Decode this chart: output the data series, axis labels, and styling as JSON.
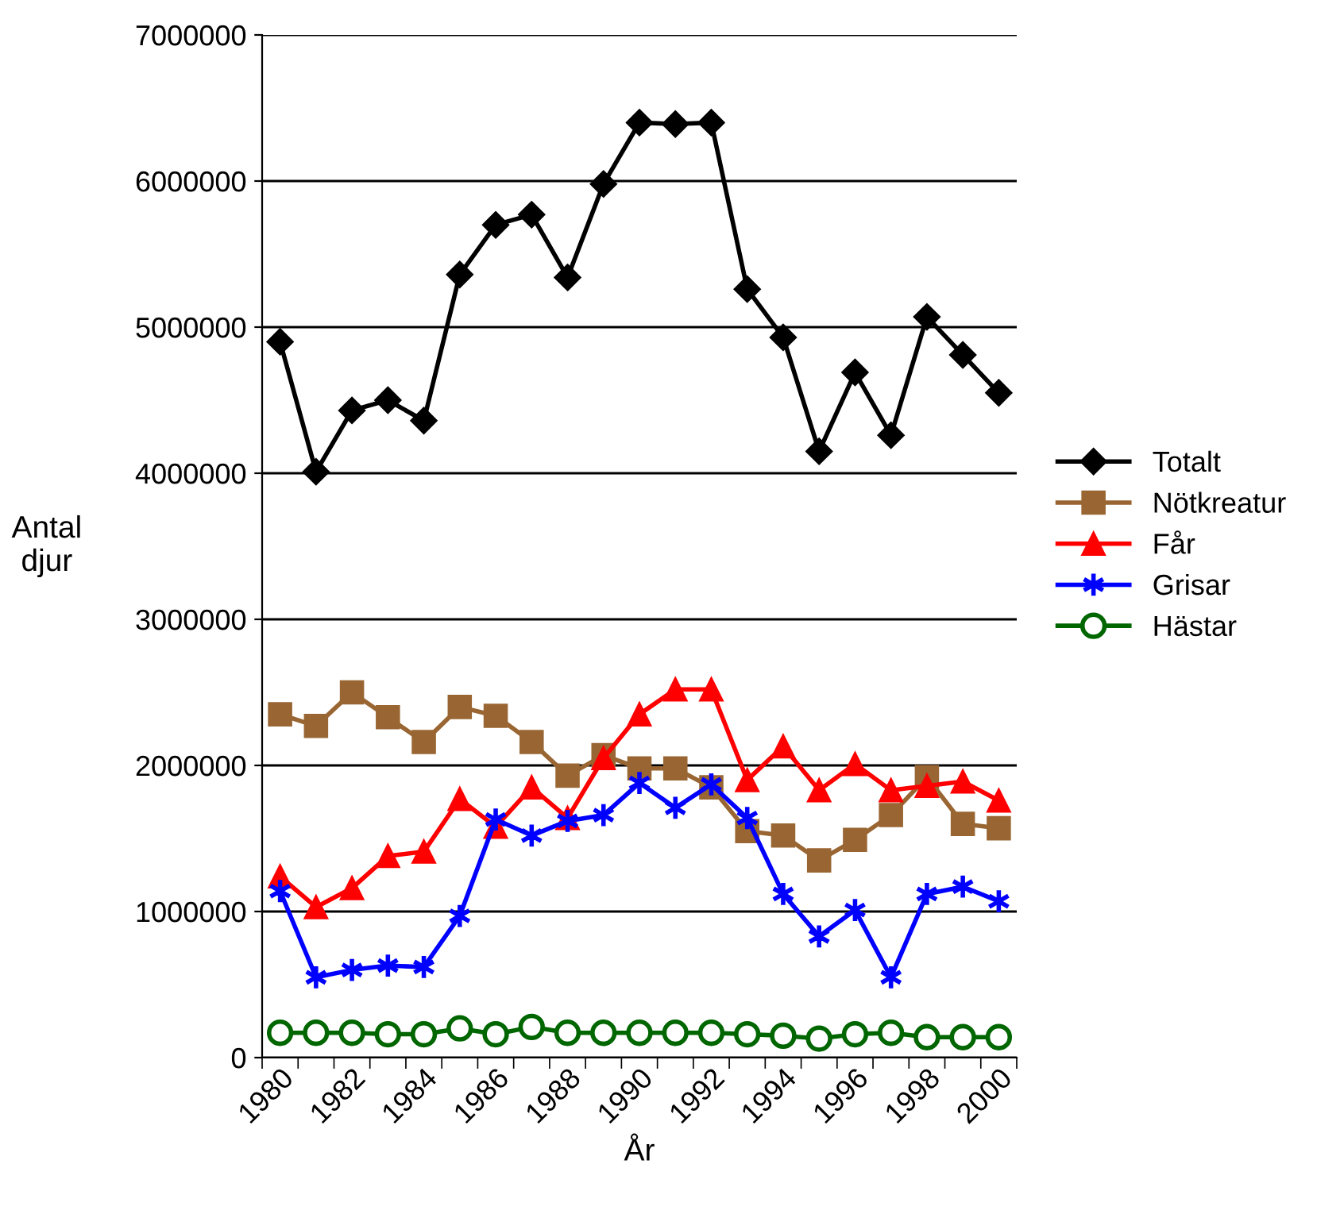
{
  "chart_data": {
    "type": "line",
    "xlabel": "År",
    "ylabel": "Antal\ndjur",
    "categories": [
      "1980",
      null,
      "1982",
      null,
      "1984",
      null,
      "1986",
      null,
      "1988",
      null,
      "1990",
      null,
      "1992",
      null,
      "1994",
      null,
      "1996",
      null,
      "1998",
      null,
      "2000"
    ],
    "ylim": [
      0,
      7000000
    ],
    "yticks": [
      0,
      1000000,
      2000000,
      3000000,
      4000000,
      5000000,
      6000000,
      7000000
    ],
    "grid": "y",
    "legend": "right",
    "series": [
      {
        "name": "Totalt",
        "color": "#000000",
        "marker": "diamond",
        "values": [
          4900000,
          4010000,
          4430000,
          4500000,
          4360000,
          5360000,
          5700000,
          5770000,
          5340000,
          5980000,
          6400000,
          6390000,
          6400000,
          5260000,
          4930000,
          4150000,
          4690000,
          4260000,
          5070000,
          4810000,
          4550000
        ]
      },
      {
        "name": "Nötkreatur",
        "color": "#996633",
        "marker": "square",
        "values": [
          2350000,
          2270000,
          2500000,
          2330000,
          2160000,
          2400000,
          2340000,
          2160000,
          1930000,
          2070000,
          1980000,
          1980000,
          1850000,
          1550000,
          1520000,
          1350000,
          1490000,
          1660000,
          1920000,
          1600000,
          1570000
        ]
      },
      {
        "name": "Får",
        "color": "#ff0000",
        "marker": "triangle",
        "values": [
          1240000,
          1030000,
          1160000,
          1380000,
          1410000,
          1770000,
          1580000,
          1850000,
          1640000,
          2050000,
          2350000,
          2520000,
          2520000,
          1900000,
          2130000,
          1830000,
          2010000,
          1830000,
          1860000,
          1890000,
          1760000
        ]
      },
      {
        "name": "Grisar",
        "color": "#0000ff",
        "marker": "cross",
        "values": [
          1140000,
          550000,
          600000,
          630000,
          620000,
          970000,
          1630000,
          1520000,
          1620000,
          1660000,
          1880000,
          1710000,
          1870000,
          1640000,
          1120000,
          830000,
          1010000,
          550000,
          1120000,
          1170000,
          1070000
        ]
      },
      {
        "name": "Hästar",
        "color": "#006600",
        "marker": "circle",
        "values": [
          170000,
          170000,
          170000,
          160000,
          160000,
          200000,
          160000,
          210000,
          170000,
          170000,
          170000,
          170000,
          170000,
          160000,
          150000,
          130000,
          160000,
          170000,
          140000,
          140000,
          140000
        ]
      }
    ]
  }
}
